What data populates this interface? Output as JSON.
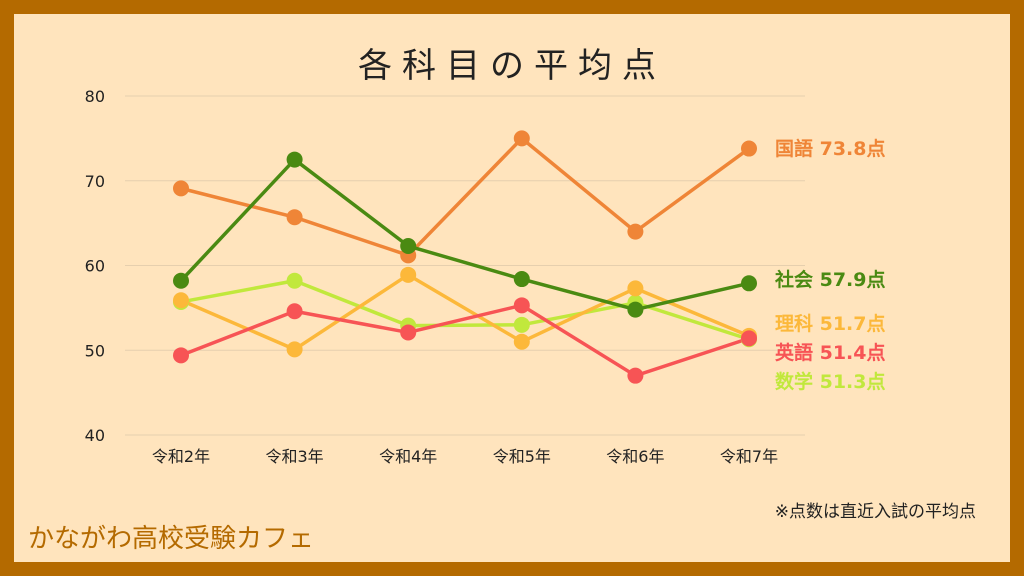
{
  "chart_data": {
    "type": "line",
    "title": "各科目の平均点",
    "categories": [
      "令和2年",
      "令和3年",
      "令和4年",
      "令和5年",
      "令和6年",
      "令和7年"
    ],
    "ylim": [
      40,
      80
    ],
    "yticks": [
      40,
      50,
      60,
      70,
      80
    ],
    "grid": true,
    "series": [
      {
        "name": "国語",
        "color": "#ef8537",
        "values": [
          69.1,
          65.7,
          61.2,
          75.0,
          64.0,
          73.8
        ],
        "end_label": "国語 73.8点"
      },
      {
        "name": "社会",
        "color": "#4a8a12",
        "values": [
          58.2,
          72.5,
          62.3,
          58.4,
          54.8,
          57.9
        ],
        "end_label": "社会 57.9点"
      },
      {
        "name": "理科",
        "color": "#fcb83a",
        "values": [
          55.9,
          50.1,
          58.9,
          51.0,
          57.3,
          51.7
        ],
        "end_label": "理科 51.7点"
      },
      {
        "name": "英語",
        "color": "#f75455",
        "values": [
          49.4,
          54.6,
          52.1,
          55.3,
          47.0,
          51.4
        ],
        "end_label": "英語 51.4点"
      },
      {
        "name": "数学",
        "color": "#c1e83c",
        "values": [
          55.7,
          58.2,
          52.9,
          53.0,
          55.6,
          51.3
        ],
        "end_label": "数学 51.3点"
      }
    ]
  },
  "footer": {
    "note": "※点数は直近入試の平均点",
    "brand": "かながわ高校受験カフェ"
  }
}
